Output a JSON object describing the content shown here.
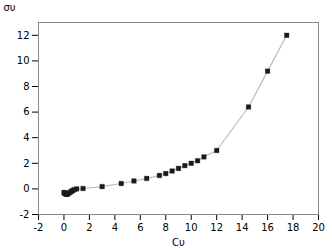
{
  "chart_data": {
    "type": "line",
    "x": [
      0.0,
      0.05,
      0.1,
      0.15,
      0.2,
      0.25,
      0.3,
      0.4,
      0.5,
      0.6,
      0.7,
      0.8,
      1.0,
      1.5,
      3.0,
      4.5,
      5.5,
      6.5,
      7.5,
      8.0,
      8.5,
      9.0,
      9.5,
      10.0,
      10.5,
      11.0,
      12.0,
      14.5,
      16.0,
      17.5
    ],
    "values": [
      -0.28,
      -0.32,
      -0.36,
      -0.4,
      -0.42,
      -0.4,
      -0.38,
      -0.32,
      -0.25,
      -0.18,
      -0.12,
      -0.06,
      0.0,
      0.03,
      0.18,
      0.42,
      0.62,
      0.82,
      1.05,
      1.2,
      1.4,
      1.6,
      1.82,
      2.0,
      2.2,
      2.5,
      3.0,
      6.4,
      9.2,
      12.0
    ],
    "xlabel": "Cυ",
    "ylabel": "συ",
    "xlim": [
      -2,
      20
    ],
    "ylim": [
      -2,
      13
    ],
    "xticks": [
      -2,
      0,
      2,
      4,
      6,
      8,
      10,
      12,
      14,
      16,
      18,
      20
    ],
    "yticks": [
      -2,
      0,
      2,
      4,
      6,
      8,
      10,
      12
    ],
    "color": "#bbbbbb",
    "marker": "square",
    "grid": false
  }
}
